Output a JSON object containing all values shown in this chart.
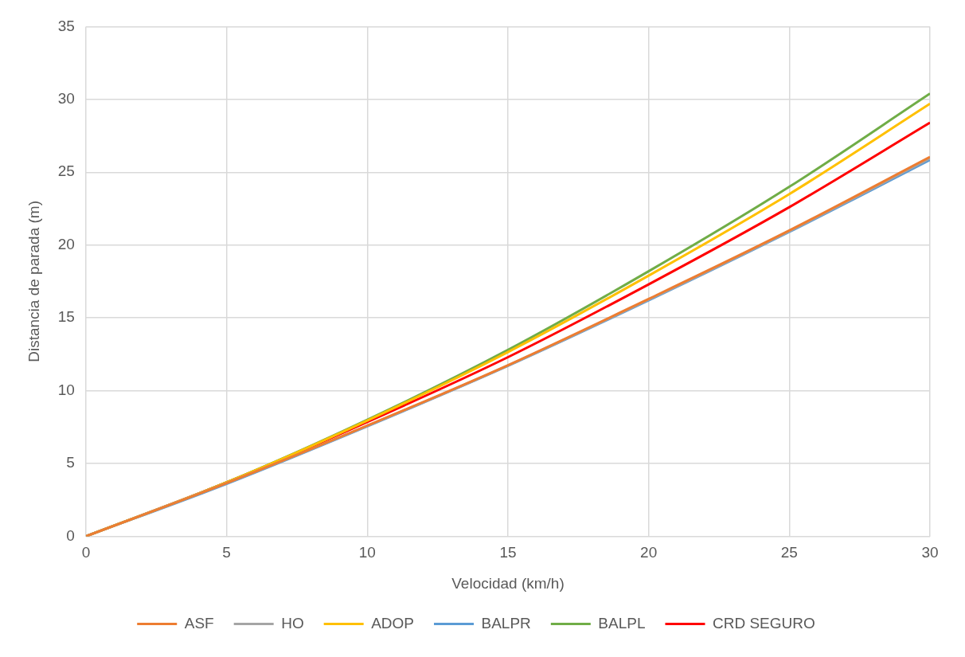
{
  "chart_data": {
    "type": "line",
    "xlabel": "Velocidad (km/h)",
    "ylabel": "Distancia de parada (m)",
    "x": [
      0,
      5,
      10,
      15,
      20,
      25,
      30
    ],
    "xlim": [
      0,
      30
    ],
    "xticks": [
      0,
      5,
      10,
      15,
      20,
      25,
      30
    ],
    "ylim": [
      0,
      35
    ],
    "yticks": [
      0,
      5,
      10,
      15,
      20,
      25,
      30,
      35
    ],
    "grid": true,
    "legend": "bottom",
    "marker": "none",
    "line_style": "solid",
    "series": [
      {
        "name": "ASF",
        "color": "#ed7d31",
        "values": [
          0,
          3.65,
          7.6,
          11.75,
          16.3,
          21.0,
          26.05
        ]
      },
      {
        "name": "HO",
        "color": "#a5a5a5",
        "values": [
          0,
          3.65,
          7.58,
          11.72,
          16.25,
          20.95,
          25.95
        ]
      },
      {
        "name": "ADOP",
        "color": "#ffc000",
        "values": [
          0,
          3.7,
          7.95,
          12.65,
          17.9,
          23.5,
          29.7
        ]
      },
      {
        "name": "BALPR",
        "color": "#5b9bd5",
        "values": [
          0,
          3.6,
          7.55,
          11.7,
          16.2,
          20.9,
          25.85
        ]
      },
      {
        "name": "BALPL",
        "color": "#70ad47",
        "values": [
          0,
          3.7,
          8.0,
          12.8,
          18.2,
          24.0,
          30.4
        ]
      },
      {
        "name": "CRD SEGURO",
        "color": "#ff0000",
        "values": [
          0,
          3.7,
          7.85,
          12.3,
          17.3,
          22.6,
          28.4
        ]
      }
    ]
  }
}
